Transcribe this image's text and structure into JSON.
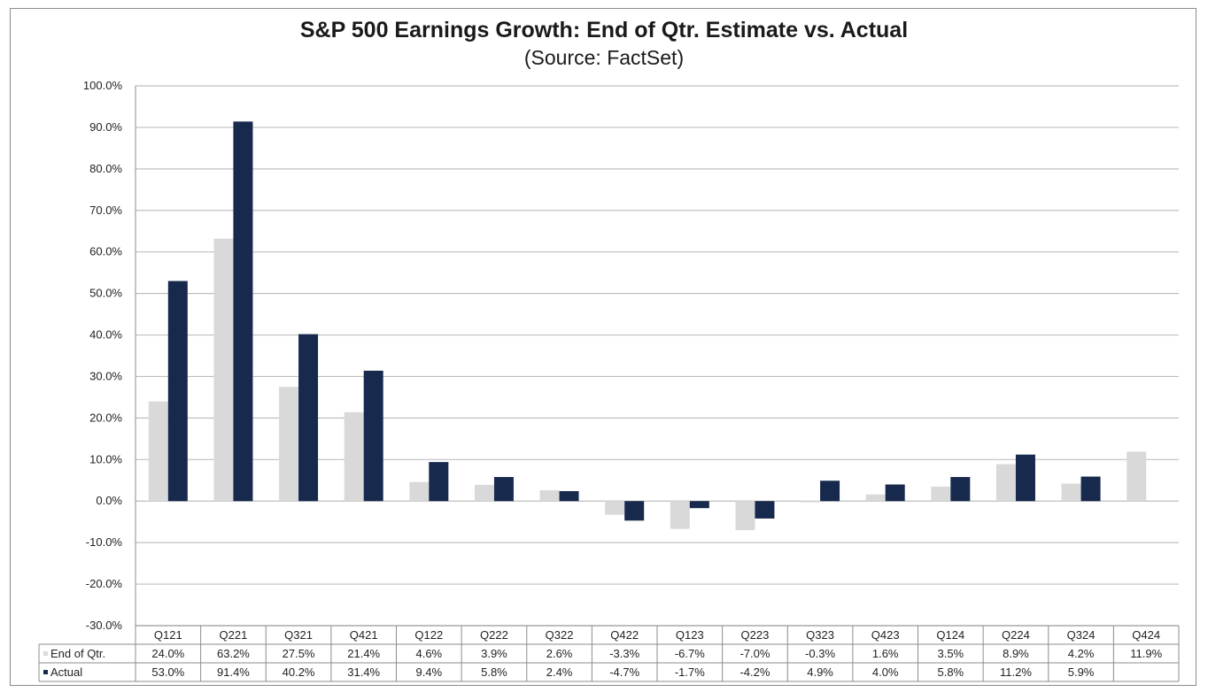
{
  "chart_data": {
    "type": "bar",
    "title": "S&P 500 Earnings Growth: End of Qtr. Estimate vs. Actual",
    "subtitle": "(Source: FactSet)",
    "categories": [
      "Q121",
      "Q221",
      "Q321",
      "Q421",
      "Q122",
      "Q222",
      "Q322",
      "Q422",
      "Q123",
      "Q223",
      "Q323",
      "Q423",
      "Q124",
      "Q224",
      "Q324",
      "Q424"
    ],
    "series": [
      {
        "name": "End of Qtr.",
        "color": "#d9d9d9",
        "values": [
          24.0,
          63.2,
          27.5,
          21.4,
          4.6,
          3.9,
          2.6,
          -3.3,
          -6.7,
          -7.0,
          -0.3,
          1.6,
          3.5,
          8.9,
          4.2,
          11.9
        ],
        "labels": [
          "24.0%",
          "63.2%",
          "27.5%",
          "21.4%",
          "4.6%",
          "3.9%",
          "2.6%",
          "-3.3%",
          "-6.7%",
          "-7.0%",
          "-0.3%",
          "1.6%",
          "3.5%",
          "8.9%",
          "4.2%",
          "11.9%"
        ]
      },
      {
        "name": "Actual",
        "color": "#17294d",
        "values": [
          53.0,
          91.4,
          40.2,
          31.4,
          9.4,
          5.8,
          2.4,
          -4.7,
          -1.7,
          -4.2,
          4.9,
          4.0,
          5.8,
          11.2,
          5.9,
          null
        ],
        "labels": [
          "53.0%",
          "91.4%",
          "40.2%",
          "31.4%",
          "9.4%",
          "5.8%",
          "2.4%",
          "-4.7%",
          "-1.7%",
          "-4.2%",
          "4.9%",
          "4.0%",
          "5.8%",
          "11.2%",
          "5.9%",
          ""
        ]
      }
    ],
    "ylim": [
      -30,
      100
    ],
    "yticks": [
      100,
      90,
      80,
      70,
      60,
      50,
      40,
      30,
      20,
      10,
      0,
      -10,
      -20,
      -30
    ],
    "ytick_labels": [
      "100.0%",
      "90.0%",
      "80.0%",
      "70.0%",
      "60.0%",
      "50.0%",
      "40.0%",
      "30.0%",
      "20.0%",
      "10.0%",
      "0.0%",
      "-10.0%",
      "-20.0%",
      "-30.0%"
    ],
    "grid": true,
    "legend": "data-table"
  }
}
